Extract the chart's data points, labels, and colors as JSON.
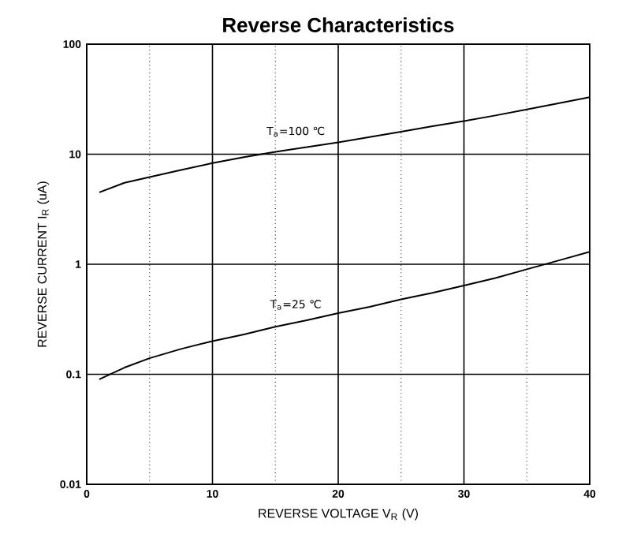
{
  "chart_data": {
    "type": "line",
    "title": "Reverse    Characteristics",
    "xlabel": "REVERSE VOLTAGE    V$_{R}$    (V)",
    "ylabel": "REVERSE CURRENT    I$_{R}$    (uA)",
    "log": "y",
    "grid": true,
    "legend": false,
    "marker": "none",
    "line_style": "solid",
    "xlim": [
      0,
      40
    ],
    "ylim": [
      0.01,
      100
    ],
    "xticks": [
      0,
      10,
      20,
      30,
      40
    ],
    "yticks": [
      0.01,
      0.1,
      1,
      10,
      100
    ],
    "series": [
      {
        "name": "T$_{a}$=100 ℃",
        "color": "#000000",
        "x": [
          1,
          3,
          5,
          7.5,
          10,
          12.5,
          15,
          17.5,
          20,
          22.5,
          25,
          27.5,
          30,
          32.5,
          35,
          37.5,
          40
        ],
        "values": [
          4.5,
          5.5,
          6.2,
          7.2,
          8.3,
          9.4,
          10.5,
          11.6,
          12.8,
          14.3,
          16,
          18,
          20,
          22.5,
          25.5,
          29,
          33
        ]
      },
      {
        "name": "T$_{a}$=25 ℃",
        "color": "#000000",
        "x": [
          1,
          3,
          5,
          7.5,
          10,
          12.5,
          15,
          17.5,
          20,
          22.5,
          25,
          27.5,
          30,
          32.5,
          35,
          37.5,
          40
        ],
        "values": [
          0.09,
          0.115,
          0.14,
          0.17,
          0.2,
          0.23,
          0.27,
          0.31,
          0.36,
          0.41,
          0.48,
          0.55,
          0.64,
          0.75,
          0.9,
          1.08,
          1.3
        ]
      }
    ]
  }
}
